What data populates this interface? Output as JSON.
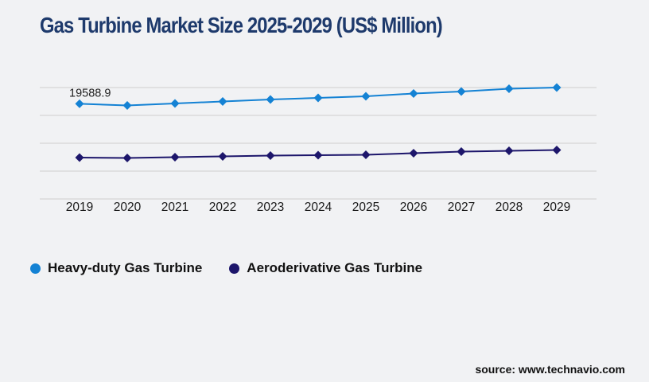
{
  "page": {
    "background": "#f1f2f4"
  },
  "header": {
    "title": "Gas Turbine Market Size 2025-2029 (US$ Million)",
    "color": "#1e3a6c"
  },
  "legend": [
    {
      "label": "Heavy-duty Gas Turbine",
      "color": "#1482d4"
    },
    {
      "label": "Aeroderivative Gas Turbine",
      "color": "#1d166b"
    }
  ],
  "source": {
    "label": "source: www.technavio.com"
  },
  "chart_data": {
    "type": "line",
    "title": "Gas Turbine Market Size 2025-2029 (US$ Million)",
    "categories": [
      "2019",
      "2020",
      "2021",
      "2022",
      "2023",
      "2024",
      "2025",
      "2026",
      "2027",
      "2028",
      "2029"
    ],
    "series": [
      {
        "name": "Heavy-duty Gas Turbine",
        "color": "#1482d4",
        "values": [
          19588.9,
          19290,
          19650,
          20000,
          20360,
          20640,
          20930,
          21430,
          21790,
          22290,
          22500
        ]
      },
      {
        "name": "Aeroderivative Gas Turbine",
        "color": "#1d166b",
        "values": [
          9930,
          9860,
          10000,
          10140,
          10290,
          10360,
          10430,
          10710,
          11000,
          11140,
          11290
        ]
      }
    ],
    "data_label": {
      "series_index": 0,
      "category_index": 0,
      "text": "19588.9"
    },
    "xlabel": "",
    "ylabel": "",
    "ylim": [
      2500,
      22500
    ],
    "gridline_step": 5000,
    "grid": "horizontal-only",
    "gridline_color": "#d5d5d5",
    "marker": "diamond",
    "legend_position": "bottom-left"
  }
}
